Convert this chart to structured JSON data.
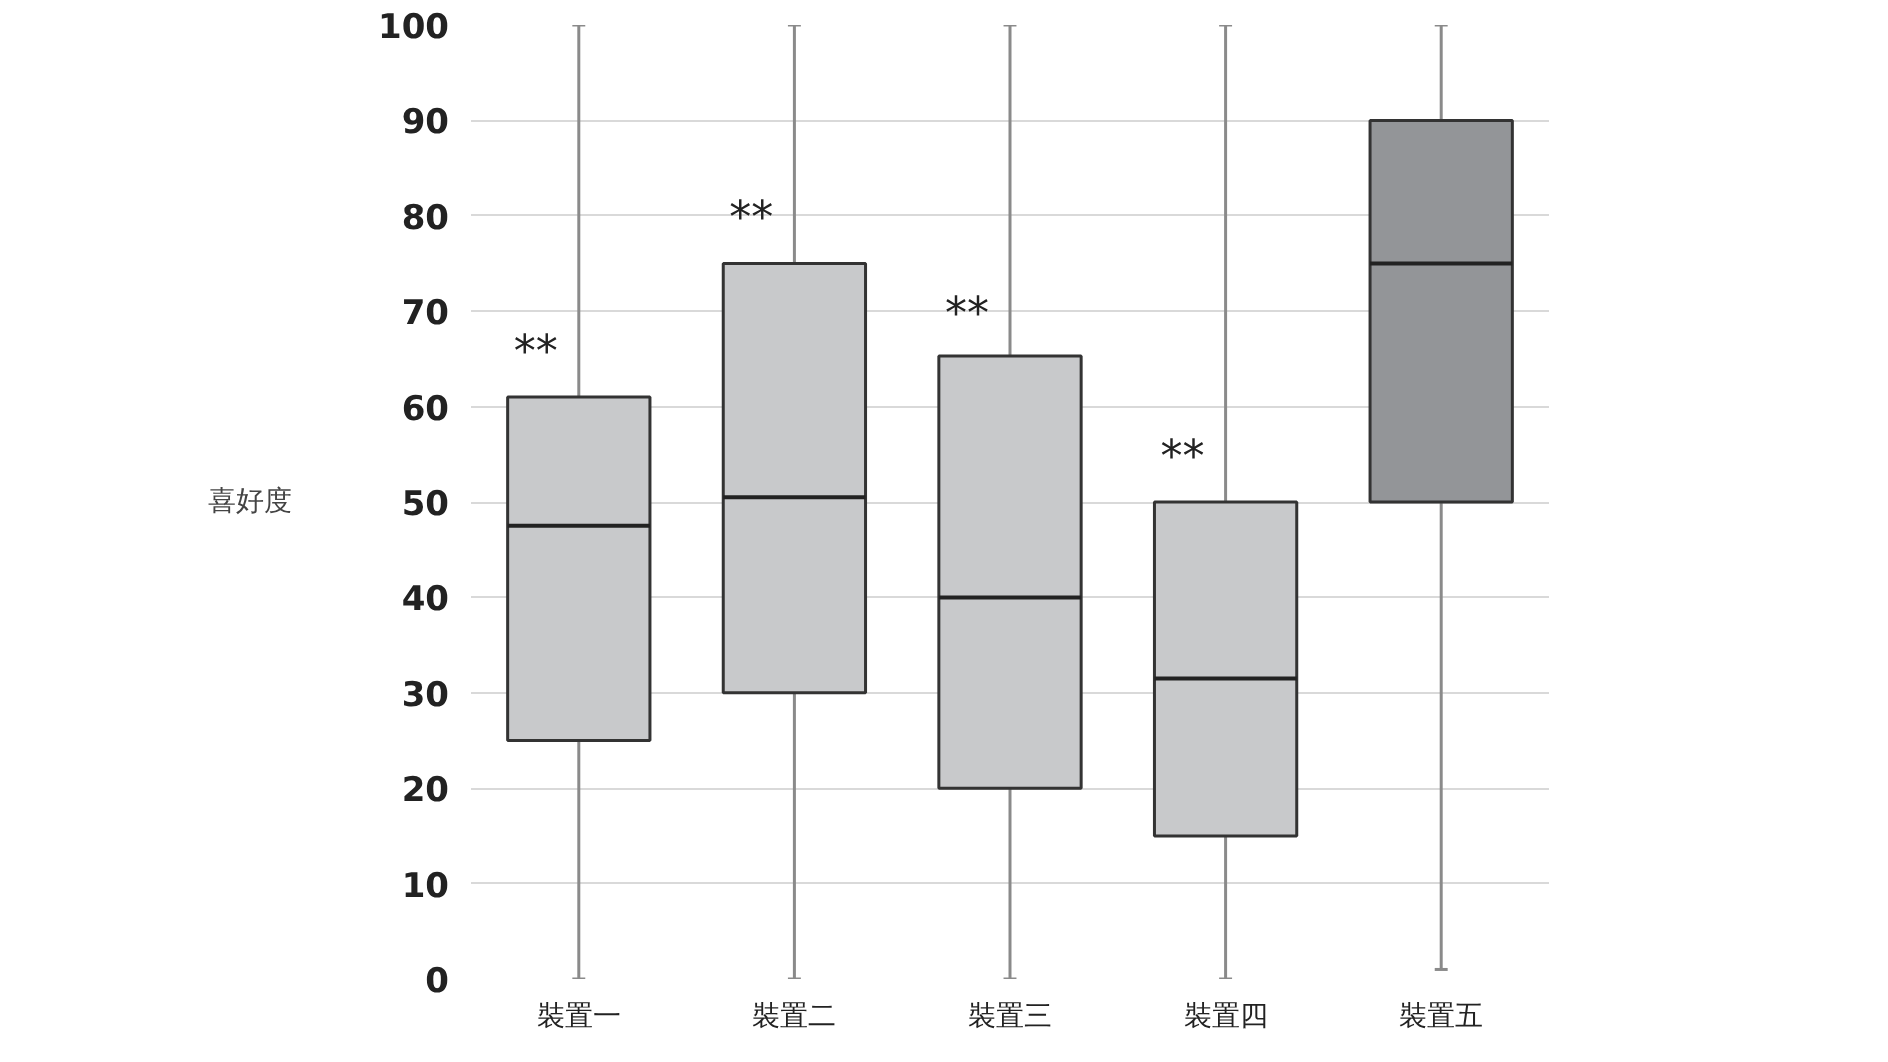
{
  "chart_data": {
    "type": "box",
    "ylabel": "喜好度",
    "categories": [
      "裝置一",
      "裝置二",
      "裝置三",
      "裝置四",
      "裝置五"
    ],
    "boxes": [
      {
        "low": 0,
        "q1": 25,
        "median": 47.5,
        "q3": 61,
        "high": 100
      },
      {
        "low": 0,
        "q1": 30,
        "median": 50.5,
        "q3": 75,
        "high": 100
      },
      {
        "low": 0,
        "q1": 20,
        "median": 40,
        "q3": 65.3,
        "high": 100
      },
      {
        "low": 0,
        "q1": 15,
        "median": 31.5,
        "q3": 50,
        "high": 100
      },
      {
        "low": 1,
        "q1": 50,
        "median": 75,
        "q3": 90,
        "high": 100
      }
    ],
    "colors": [
      "#c8c9cb",
      "#c8c9cb",
      "#c8c9cb",
      "#c8c9cb",
      "#939598"
    ],
    "ylim": [
      0,
      100
    ],
    "yticks": [
      0,
      10,
      20,
      30,
      40,
      50,
      60,
      70,
      80,
      90,
      100
    ],
    "grid": "y",
    "annotations": [
      {
        "text": "**",
        "x": "裝置一",
        "y": 63
      },
      {
        "text": "**",
        "x": "裝置二",
        "y": 77
      },
      {
        "text": "**",
        "x": "裝置三",
        "y": 67
      },
      {
        "text": "**",
        "x": "裝置四",
        "y": 52
      }
    ]
  }
}
